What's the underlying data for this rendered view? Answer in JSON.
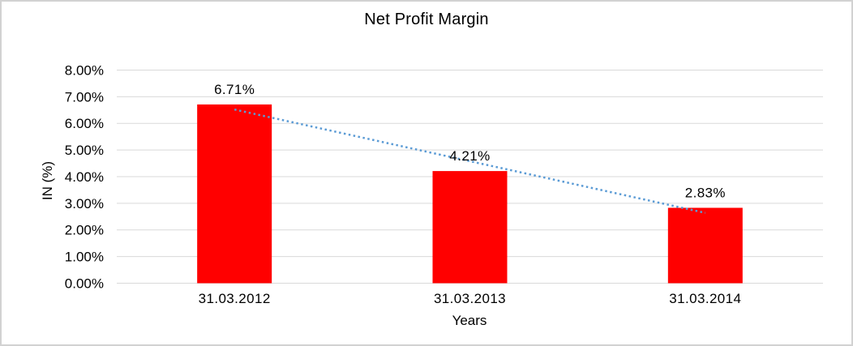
{
  "chart_data": {
    "type": "bar",
    "title": "Net Profit Margin",
    "xlabel": "Years",
    "ylabel": "IN (%)",
    "categories": [
      "31.03.2012",
      "31.03.2013",
      "31.03.2014"
    ],
    "values": [
      6.71,
      4.21,
      2.83
    ],
    "data_labels": [
      "6.71%",
      "4.21%",
      "2.83%"
    ],
    "ylim": [
      0,
      8
    ],
    "ytick_step": 1,
    "ytick_labels": [
      "0.00%",
      "1.00%",
      "2.00%",
      "3.00%",
      "4.00%",
      "5.00%",
      "6.00%",
      "7.00%",
      "8.00%"
    ],
    "grid": "horizontal",
    "legend": "none",
    "bar_color": "#FF0000",
    "gridline_color": "#D9D9D9",
    "text_color": "#000000",
    "trendline": {
      "type": "linear",
      "style": "dotted",
      "color": "#5B9BD5",
      "start_value": 6.52,
      "end_value": 2.64
    }
  }
}
